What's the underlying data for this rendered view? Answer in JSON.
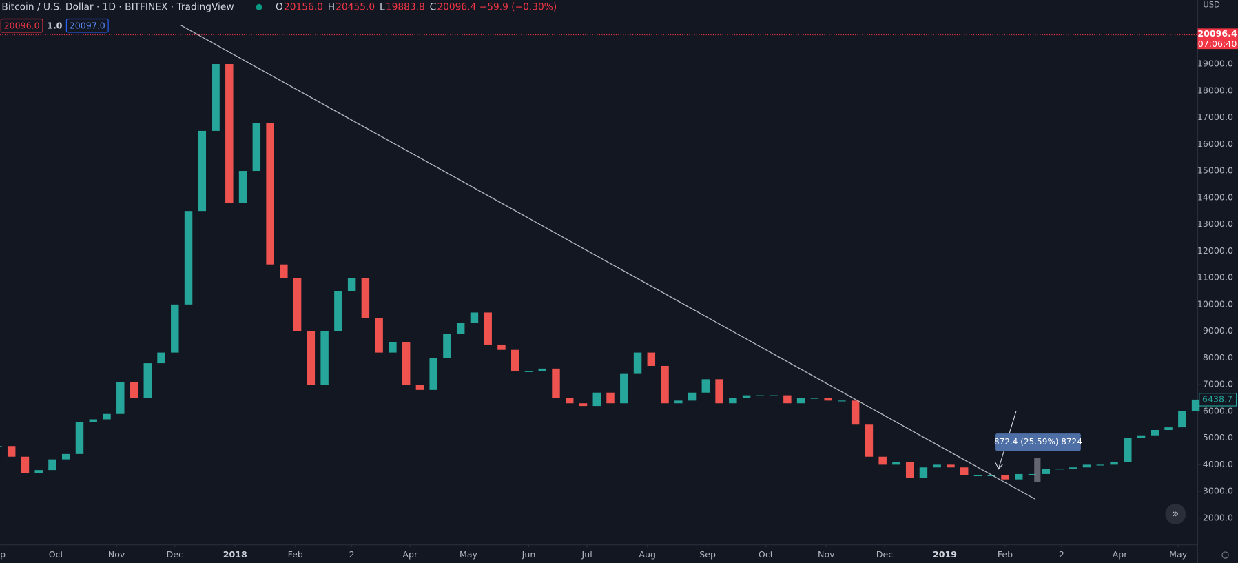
{
  "header": {
    "symbol": "Bitcoin / U.S. Dollar · 1D · BITFINEX · TradingView",
    "ohlc": [
      {
        "key": "O",
        "value": "20156.0"
      },
      {
        "key": "H",
        "value": "20455.0"
      },
      {
        "key": "L",
        "value": "19883.8"
      },
      {
        "key": "C",
        "value": "20096.4"
      }
    ],
    "change": "−59.9 (−0.30%)",
    "bid": "20096.0",
    "spread": "1.0",
    "ask": "20097.0",
    "currency": "USD",
    "countdown": "07:06:40"
  },
  "annotation": "872.4 (25.59%) 8724",
  "chart_data": {
    "type": "candlestick",
    "last_price": 20096.4,
    "current_price": 6438.7,
    "up_color": "#26a69a",
    "down_color": "#ef5350",
    "xlim": [
      0,
      617
    ],
    "ylim": [
      1000,
      21400
    ],
    "grid": false,
    "xticks": [
      {
        "value": 0,
        "label": "p"
      },
      {
        "value": 30,
        "label": "Oct"
      },
      {
        "value": 61,
        "label": "Nov"
      },
      {
        "value": 91,
        "label": "Dec"
      },
      {
        "value": 122,
        "label": "2018"
      },
      {
        "value": 153,
        "label": "Feb"
      },
      {
        "value": 182,
        "label": "2"
      },
      {
        "value": 212,
        "label": "Apr"
      },
      {
        "value": 242,
        "label": "May"
      },
      {
        "value": 273,
        "label": "Jun"
      },
      {
        "value": 303,
        "label": "Jul"
      },
      {
        "value": 334,
        "label": "Aug"
      },
      {
        "value": 365,
        "label": "Sep"
      },
      {
        "value": 395,
        "label": "Oct"
      },
      {
        "value": 426,
        "label": "Nov"
      },
      {
        "value": 456,
        "label": "Dec"
      },
      {
        "value": 487,
        "label": "2019"
      },
      {
        "value": 518,
        "label": "Feb"
      },
      {
        "value": 547,
        "label": "2"
      },
      {
        "value": 577,
        "label": "Apr"
      },
      {
        "value": 607,
        "label": "May"
      }
    ],
    "yticks": [
      {
        "value": 2000,
        "label": "2000.0"
      },
      {
        "value": 3000,
        "label": "3000.0"
      },
      {
        "value": 4000,
        "label": "4000.0"
      },
      {
        "value": 5000,
        "label": "5000.0"
      },
      {
        "value": 6000,
        "label": "6000.0"
      },
      {
        "value": 7000,
        "label": "7000.0"
      },
      {
        "value": 8000,
        "label": "8000.0"
      },
      {
        "value": 9000,
        "label": "9000.0"
      },
      {
        "value": 10000,
        "label": "10000.0"
      },
      {
        "value": 11000,
        "label": "11000.0"
      },
      {
        "value": 12000,
        "label": "12000.0"
      },
      {
        "value": 13000,
        "label": "13000.0"
      },
      {
        "value": 14000,
        "label": "14000.0"
      },
      {
        "value": 15000,
        "label": "15000.0"
      },
      {
        "value": 16000,
        "label": "16000.0"
      },
      {
        "value": 17000,
        "label": "17000.0"
      },
      {
        "value": 18000,
        "label": "18000.0"
      },
      {
        "value": 19000,
        "label": "19000.0"
      }
    ],
    "x": [
      0,
      7,
      14,
      21,
      28,
      35,
      42,
      49,
      56,
      63,
      70,
      77,
      84,
      91,
      98,
      105,
      112,
      119,
      126,
      133,
      140,
      147,
      154,
      161,
      168,
      175,
      182,
      189,
      196,
      203,
      210,
      217,
      224,
      231,
      238,
      245,
      252,
      259,
      266,
      273,
      280,
      287,
      294,
      301,
      308,
      315,
      322,
      329,
      336,
      343,
      350,
      357,
      364,
      371,
      378,
      385,
      392,
      399,
      406,
      413,
      420,
      427,
      434,
      441,
      448,
      455,
      462,
      469,
      476,
      483,
      490,
      497,
      504,
      511,
      518,
      525,
      532,
      539,
      546,
      553,
      560,
      567,
      574,
      581,
      588,
      595,
      602,
      609,
      616
    ],
    "series": [
      {
        "values": [
          4700,
          4300,
          3700,
          3800,
          4200,
          4400,
          5600,
          5700,
          5900,
          7100,
          6500,
          7800,
          8200,
          10000,
          13500,
          16500,
          19000,
          13800,
          15000,
          16800,
          11500,
          11000,
          9000,
          7000,
          9000,
          10500,
          11000,
          9500,
          8200,
          8600,
          7000,
          6800,
          8000,
          8900,
          9300,
          9700,
          8500,
          8300,
          7500,
          7500,
          7600,
          6500,
          6300,
          6200,
          6700,
          6300,
          7400,
          8200,
          7700,
          6300,
          6400,
          6700,
          7200,
          6300,
          6500,
          6600,
          6600,
          6600,
          6300,
          6500,
          6500,
          6400,
          6400,
          5500,
          4300,
          4000,
          4100,
          3500,
          3900,
          4000,
          3900,
          3600,
          3600,
          3600,
          3450,
          3650,
          3650,
          3850,
          3850,
          3900,
          4000,
          4000,
          4100,
          5000,
          5100,
          5300,
          5400,
          6000,
          6438
        ]
      }
    ]
  }
}
